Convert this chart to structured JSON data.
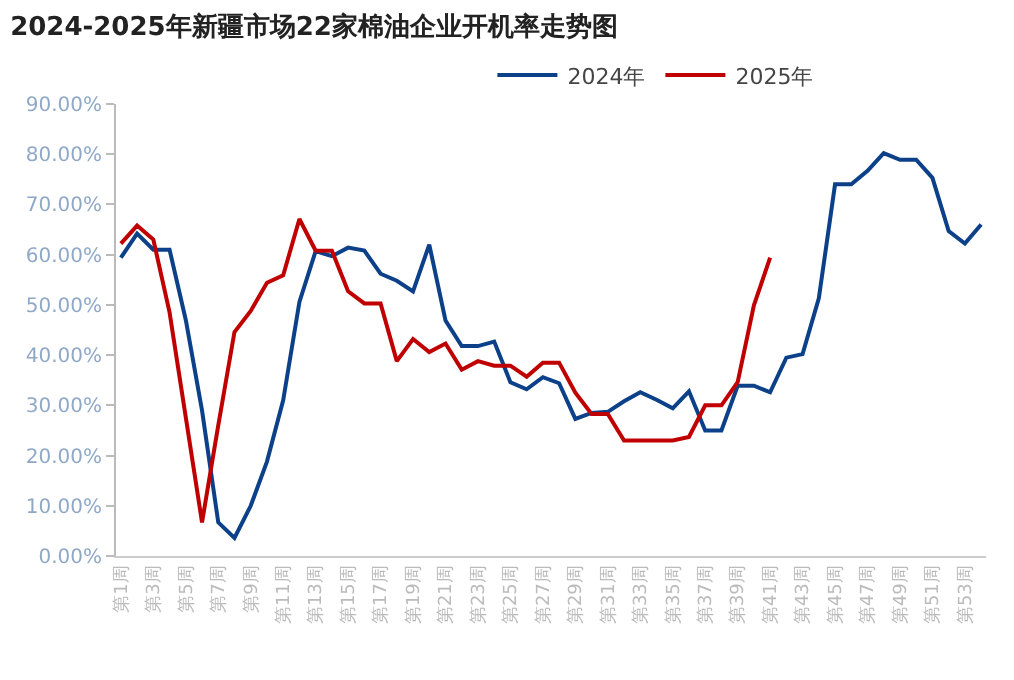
{
  "chart_data": {
    "type": "line",
    "title": "2024-2025年新疆市场22家棉油企业开机率走势图",
    "categories": [
      "第1周",
      null,
      "第3周",
      null,
      "第5周",
      null,
      "第7周",
      null,
      "第9周",
      null,
      "第11周",
      null,
      "第13周",
      null,
      "第15周",
      null,
      "第17周",
      null,
      "第19周",
      null,
      "第21周",
      null,
      "第23周",
      null,
      "第25周",
      null,
      "第27周",
      null,
      "第29周",
      null,
      "第31周",
      null,
      "第33周",
      null,
      "第35周",
      null,
      "第37周",
      null,
      "第39周",
      null,
      "第41周",
      null,
      "第43周",
      null,
      "第45周",
      null,
      "第47周",
      null,
      "第49周",
      null,
      "第51周",
      null,
      "第53周",
      null
    ],
    "series": [
      {
        "name": "2024年",
        "color": "#0c4189",
        "values": [
          59.4,
          64.2,
          61.0,
          61.0,
          47.0,
          29.0,
          6.7,
          3.6,
          10.0,
          18.8,
          31.0,
          50.6,
          60.7,
          59.7,
          61.4,
          60.8,
          56.2,
          54.8,
          52.7,
          62.0,
          46.9,
          41.8,
          41.8,
          42.7,
          34.6,
          33.2,
          35.6,
          34.4,
          27.3,
          28.5,
          28.7,
          30.8,
          32.6,
          31.1,
          29.4,
          32.8,
          25.0,
          25.0,
          33.9,
          33.9,
          32.6,
          39.5,
          40.2,
          51.3,
          74.0,
          74.0,
          76.7,
          80.2,
          78.9,
          78.9,
          75.3,
          64.7,
          62.2,
          66.0
        ]
      },
      {
        "name": "2025年",
        "color": "#c00000",
        "values": [
          62.2,
          65.8,
          63.0,
          48.5,
          27.6,
          6.7,
          26.0,
          44.6,
          48.8,
          54.4,
          55.9,
          67.1,
          60.8,
          60.8,
          52.7,
          50.3,
          50.3,
          38.8,
          43.2,
          40.6,
          42.3,
          37.1,
          38.8,
          37.9,
          37.9,
          35.7,
          38.5,
          38.5,
          32.5,
          28.3,
          28.3,
          23.0,
          23.0,
          23.0,
          23.0,
          23.7,
          30.0,
          30.0,
          34.6,
          49.9,
          59.4,
          null,
          null,
          null,
          null,
          null,
          null,
          null,
          null,
          null,
          null,
          null,
          null,
          null
        ]
      }
    ],
    "ylim": [
      0,
      90
    ],
    "yticks": [
      {
        "value": 0,
        "label": "0.00%"
      },
      {
        "value": 10,
        "label": "10.00%"
      },
      {
        "value": 20,
        "label": "20.00%"
      },
      {
        "value": 30,
        "label": "30.00%"
      },
      {
        "value": 40,
        "label": "40.00%"
      },
      {
        "value": 50,
        "label": "50.00%"
      },
      {
        "value": 60,
        "label": "60.00%"
      },
      {
        "value": 70,
        "label": "70.00%"
      },
      {
        "value": 80,
        "label": "80.00%"
      },
      {
        "value": 90,
        "label": "90.00%"
      }
    ],
    "legend": "top",
    "marker": "none",
    "line_style": "solid"
  }
}
